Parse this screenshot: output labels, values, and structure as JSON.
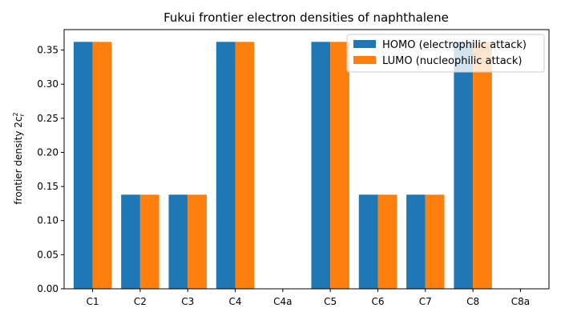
{
  "chart_data": {
    "type": "bar",
    "title": "Fukui frontier electron densities of naphthalene",
    "xlabel": "",
    "ylabel": "frontier density 2c",
    "ylabel_sub": "r",
    "ylabel_sup": "2",
    "categories": [
      "C1",
      "C2",
      "C3",
      "C4",
      "C4a",
      "C5",
      "C6",
      "C7",
      "C8",
      "C8a"
    ],
    "series": [
      {
        "name": "HOMO (electrophilic attack)",
        "color": "#1f77b4",
        "values": [
          0.362,
          0.138,
          0.138,
          0.362,
          0.0,
          0.362,
          0.138,
          0.138,
          0.362,
          0.0
        ]
      },
      {
        "name": "LUMO (nucleophilic attack)",
        "color": "#ff7f0e",
        "values": [
          0.362,
          0.138,
          0.138,
          0.362,
          0.0,
          0.362,
          0.138,
          0.138,
          0.362,
          0.0
        ]
      }
    ],
    "ylim": [
      0,
      0.38
    ],
    "yticks": [
      "0.00",
      "0.05",
      "0.10",
      "0.15",
      "0.20",
      "0.25",
      "0.30",
      "0.35"
    ],
    "legend_position": "top-right",
    "grid": false
  }
}
